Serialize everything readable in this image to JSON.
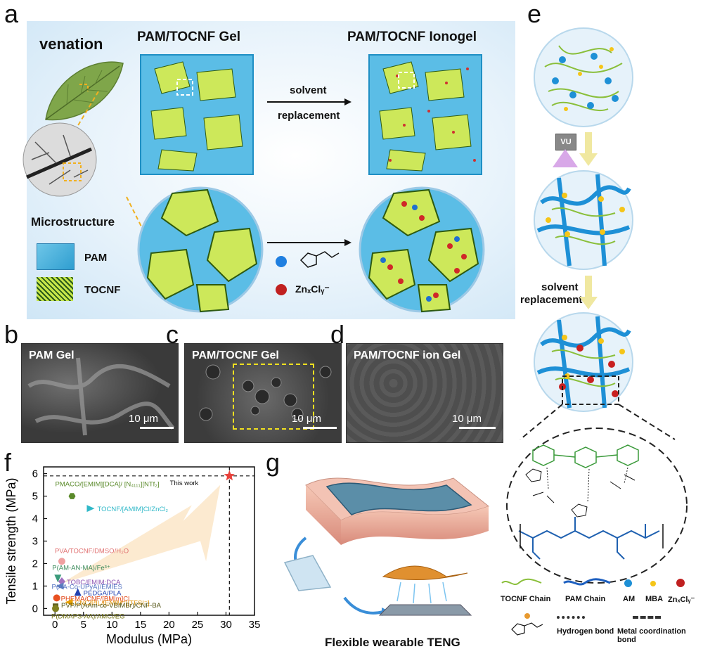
{
  "panels": {
    "a": {
      "label": "a",
      "venation": "venation",
      "gel_title": "PAM/TOCNF Gel",
      "ionogel_title": "PAM/TOCNF Ionogel",
      "arrow_text_1": "solvent",
      "arrow_text_2": "replacement",
      "microstructure": "Microstructure",
      "legend_pam": "PAM",
      "legend_tocnf": "TOCNF",
      "legend_zn": "ZnₓClᵧ⁻"
    },
    "b": {
      "label": "b",
      "title": "PAM Gel",
      "scale": "10 μm"
    },
    "c": {
      "label": "c",
      "title": "PAM/TOCNF Gel",
      "scale": "10 μm"
    },
    "d": {
      "label": "d",
      "title": "PAM/TOCNF ion Gel",
      "scale": "10 μm"
    },
    "e": {
      "label": "e",
      "vu": "VU",
      "solvent_1": "solvent",
      "solvent_2": "replacement",
      "legend": {
        "tocnf_chain": "TOCNF Chain",
        "pam_chain": "PAM Chain",
        "am": "AM",
        "mba": "MBA",
        "zn": "ZnₓClᵧ⁻",
        "hbond": "Hydrogen bond",
        "metal_bond": "Metal coordination bond"
      }
    },
    "f": {
      "label": "f"
    },
    "g": {
      "label": "g",
      "caption": "Flexible wearable TENG"
    }
  },
  "chart_data": {
    "type": "scatter",
    "xlabel": "Modulus (MPa)",
    "ylabel": "Tensile strength (MPa)",
    "xlim": [
      -2,
      35
    ],
    "ylim": [
      -0.3,
      6.3
    ],
    "xticks": [
      0,
      5,
      10,
      15,
      20,
      25,
      30,
      35
    ],
    "yticks": [
      0,
      1,
      2,
      3,
      4,
      5,
      6
    ],
    "reference_lines": {
      "x": 30.6,
      "y": 5.9
    },
    "series": [
      {
        "name": "This work",
        "x": 30.6,
        "y": 5.9,
        "color": "#e8403a",
        "marker": "star",
        "label": "This work"
      },
      {
        "name": "PMACO/[EMIM][DCA]/ [N₄₁₁₁][NTf₂]",
        "x": 3.0,
        "y": 5.0,
        "color": "#5a8a2a",
        "marker": "hexagon",
        "label": "PMACO/[EMIM][DCA]/ [N₄₁₁₁][NTf₂]"
      },
      {
        "name": "TOCNF/[AMIM]Cl/ZnCl₂",
        "x": 6.2,
        "y": 4.45,
        "color": "#2fb8c8",
        "marker": "triangle-right",
        "label": "TOCNF/[AMIM]Cl/ZnCl₂"
      },
      {
        "name": "PVA/TOCNF/DMSO/H₂O",
        "x": 1.2,
        "y": 2.1,
        "color": "#f0a0a0",
        "marker": "circle",
        "label": "PVA/TOCNF/DMSO/H₂O"
      },
      {
        "name": "P(AM-AN-MA)/Fe³⁺",
        "x": 0.5,
        "y": 1.35,
        "color": "#3a9a7a",
        "marker": "triangle-down",
        "label": "P(AM-AN-MA)/Fe³⁺"
      },
      {
        "name": "TOBC/EMIM:DCA",
        "x": 1.2,
        "y": 1.2,
        "color": "#a070c0",
        "marker": "diamond",
        "label": "TOBC/EMIM:DCA"
      },
      {
        "name": "P(AA-Co-UPyA)/EMIES",
        "x": 0.9,
        "y": 1.0,
        "color": "#6080c0",
        "marker": "triangle-left",
        "label": "P(AA-Co-UPyA)/EMIES"
      },
      {
        "name": "PEDGA/PLA",
        "x": 4.0,
        "y": 0.72,
        "color": "#2040b0",
        "marker": "triangle-up",
        "label": "PEDGA/PLA"
      },
      {
        "name": "PHEMA/CNF/[BMIm]Cl",
        "x": 0.3,
        "y": 0.47,
        "color": "#e85020",
        "marker": "circle",
        "label": "PHEMA/CNF/[BMIm]Cl"
      },
      {
        "name": "CNC/PIL/[EMIM⁺][TFSI⁻]",
        "x": 2.5,
        "y": 0.28,
        "color": "#e8a000",
        "marker": "triangle-left",
        "label": "CNC/PIL/[EMIM⁺][TFSI⁻]"
      },
      {
        "name": "PVP/P(AAm-co-VBIMBr)/CNF-BA",
        "x": 0.1,
        "y": 0.1,
        "color": "#606020",
        "marker": "square",
        "label": "PVP/P(AAm-co-VBIMBr)/CNF-BA"
      },
      {
        "name": "P(DMAPS-AA)/AMCl/EG",
        "x": 0.1,
        "y": 0.0,
        "color": "#808020",
        "marker": "circle",
        "label": "P(DMAPS-AA)/AMCl/EG"
      }
    ]
  }
}
